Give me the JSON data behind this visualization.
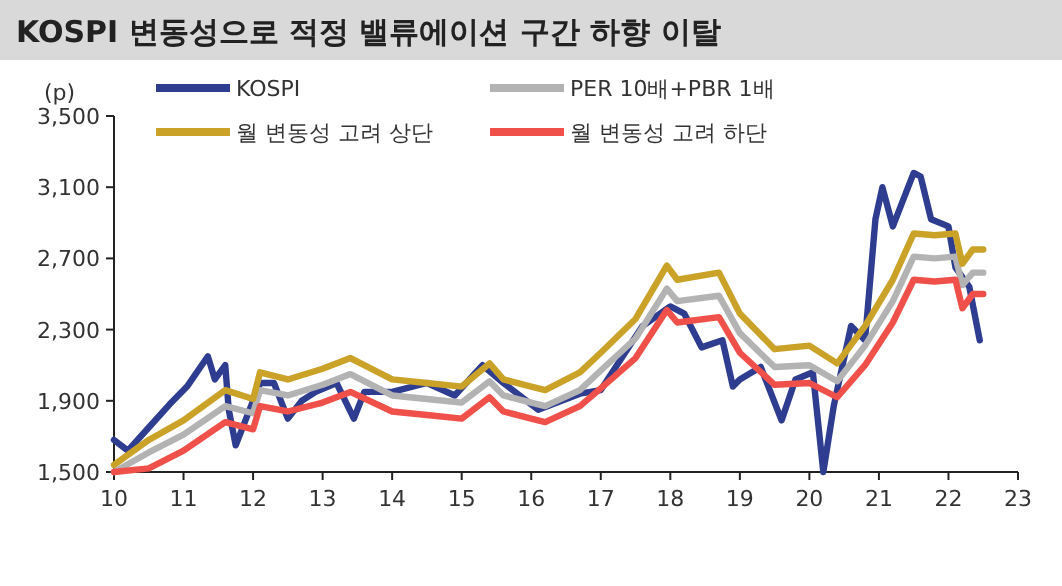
{
  "chart_data": {
    "type": "line",
    "title": "KOSPI 변동성으로 적정 밸류에이션 구간 하향 이탈",
    "ylabel": "(p)",
    "xlim": [
      10,
      23
    ],
    "xticks": [
      10,
      11,
      12,
      13,
      14,
      15,
      16,
      17,
      18,
      19,
      20,
      21,
      22,
      23
    ],
    "ylim": [
      1500,
      3500
    ],
    "yticks": [
      {
        "value": 1500,
        "label": "1,500"
      },
      {
        "value": 1900,
        "label": "1,900"
      },
      {
        "value": 2300,
        "label": "2,300"
      },
      {
        "value": 2700,
        "label": "2,700"
      },
      {
        "value": 3100,
        "label": "3,100"
      },
      {
        "value": 3500,
        "label": "3,500"
      }
    ],
    "grid": false,
    "legend": "top",
    "marker": "none",
    "line_style": "solid",
    "series": [
      {
        "name": "KOSPI",
        "color": "#2e3d8f",
        "x": [
          10,
          10.2,
          10.5,
          10.8,
          11.05,
          11.35,
          11.45,
          11.6,
          11.65,
          11.75,
          11.9,
          12.1,
          12.3,
          12.5,
          12.7,
          12.9,
          13.2,
          13.45,
          13.6,
          14,
          14.5,
          14.9,
          15.3,
          15.6,
          16.1,
          16.7,
          17,
          17.6,
          18,
          18.2,
          18.45,
          18.75,
          18.9,
          19,
          19.3,
          19.6,
          19.8,
          20.05,
          20.2,
          20.35,
          20.6,
          20.8,
          20.95,
          21.05,
          21.2,
          21.5,
          21.6,
          21.75,
          22,
          22.1,
          22.3,
          22.45
        ],
        "values": [
          1680,
          1620,
          1750,
          1880,
          1980,
          2150,
          2020,
          2100,
          1850,
          1650,
          1800,
          2000,
          2000,
          1800,
          1900,
          1950,
          2000,
          1800,
          1950,
          1950,
          2000,
          1930,
          2100,
          2000,
          1850,
          1940,
          1960,
          2320,
          2430,
          2390,
          2200,
          2240,
          1980,
          2020,
          2090,
          1790,
          2020,
          2060,
          1500,
          1870,
          2320,
          2240,
          2920,
          3100,
          2880,
          3180,
          3160,
          2920,
          2880,
          2650,
          2540,
          2240
        ]
      },
      {
        "name": "PER 10배+PBR 1배",
        "color": "#b3b3b3",
        "x": [
          10,
          10.5,
          11,
          11.6,
          12,
          12.1,
          12.5,
          13,
          13.4,
          14,
          14.5,
          15,
          15.4,
          15.6,
          16,
          16.2,
          16.7,
          17,
          17.5,
          17.95,
          18.1,
          18.7,
          19,
          19.5,
          20,
          20.4,
          20.8,
          21.2,
          21.5,
          21.8,
          22.1,
          22.2,
          22.35,
          22.5
        ],
        "values": [
          1500,
          1610,
          1710,
          1870,
          1830,
          1960,
          1930,
          1990,
          2050,
          1930,
          1910,
          1890,
          2010,
          1930,
          1890,
          1870,
          1960,
          2070,
          2250,
          2530,
          2460,
          2490,
          2280,
          2090,
          2100,
          2010,
          2210,
          2460,
          2710,
          2700,
          2710,
          2550,
          2620,
          2620
        ]
      },
      {
        "name": "월 변동성 고려 상단",
        "color": "#c9a227",
        "x": [
          10,
          10.5,
          11,
          11.6,
          12,
          12.1,
          12.5,
          13,
          13.4,
          14,
          14.5,
          15,
          15.4,
          15.6,
          16,
          16.2,
          16.7,
          17,
          17.5,
          17.95,
          18.1,
          18.7,
          19,
          19.5,
          20,
          20.4,
          20.8,
          21.2,
          21.5,
          21.8,
          22.1,
          22.2,
          22.35,
          22.5
        ],
        "values": [
          1540,
          1680,
          1790,
          1960,
          1910,
          2060,
          2020,
          2080,
          2140,
          2020,
          2000,
          1980,
          2110,
          2020,
          1980,
          1960,
          2060,
          2170,
          2360,
          2660,
          2580,
          2620,
          2390,
          2190,
          2210,
          2110,
          2320,
          2580,
          2840,
          2830,
          2840,
          2670,
          2750,
          2750
        ]
      },
      {
        "name": "월 변동성 고려 하단",
        "color": "#f0504a",
        "x": [
          10,
          10.5,
          11,
          11.6,
          12,
          12.1,
          12.5,
          13,
          13.4,
          14,
          14.5,
          15,
          15.4,
          15.6,
          16,
          16.2,
          16.7,
          17,
          17.5,
          17.95,
          18.1,
          18.7,
          19,
          19.5,
          20,
          20.4,
          20.8,
          21.2,
          21.5,
          21.8,
          22.1,
          22.2,
          22.35,
          22.5
        ],
        "values": [
          1500,
          1520,
          1620,
          1780,
          1740,
          1870,
          1840,
          1890,
          1950,
          1840,
          1820,
          1800,
          1920,
          1840,
          1800,
          1780,
          1870,
          1970,
          2140,
          2410,
          2340,
          2370,
          2170,
          1990,
          2000,
          1920,
          2100,
          2340,
          2580,
          2570,
          2580,
          2420,
          2500,
          2500
        ]
      }
    ]
  }
}
